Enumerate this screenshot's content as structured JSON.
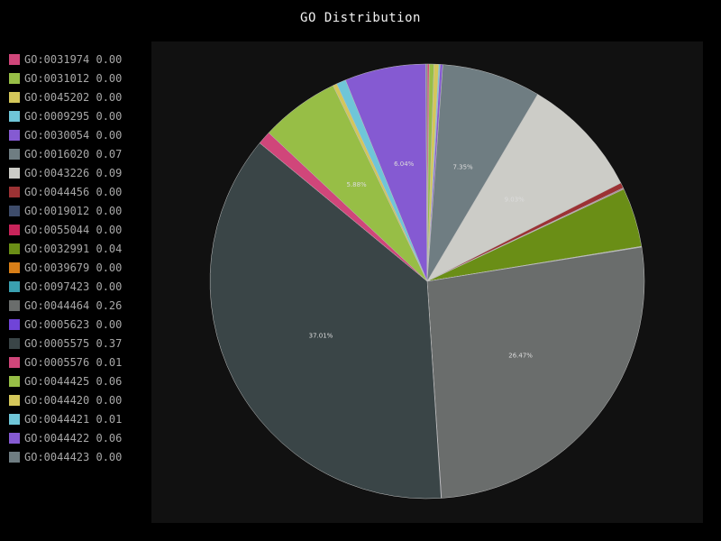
{
  "chart_data": {
    "type": "pie",
    "title": "GO Distribution",
    "slices": [
      {
        "label": "GO:0031974",
        "value_text": "0.00",
        "value": 0.0015,
        "color": "#d0467a",
        "pct_label": ""
      },
      {
        "label": "GO:0031012",
        "value_text": "0.00",
        "value": 0.0035,
        "color": "#97be46",
        "pct_label": ""
      },
      {
        "label": "GO:0045202",
        "value_text": "0.00",
        "value": 0.0035,
        "color": "#d4c75a",
        "pct_label": ""
      },
      {
        "label": "GO:0009295",
        "value_text": "0.00",
        "value": 0.001,
        "color": "#6fc6d8",
        "pct_label": ""
      },
      {
        "label": "GO:0030054",
        "value_text": "0.00",
        "value": 0.002,
        "color": "#855ad2",
        "pct_label": ""
      },
      {
        "label": "GO:0016020",
        "value_text": "0.07",
        "value": 0.0735,
        "color": "#6f7d82",
        "pct_label": "7.35%"
      },
      {
        "label": "GO:0043226",
        "value_text": "0.09",
        "value": 0.0903,
        "color": "#ccccc7",
        "pct_label": "9.03%"
      },
      {
        "label": "GO:0044456",
        "value_text": "0.00",
        "value": 0.004,
        "color": "#9c3234",
        "pct_label": ""
      },
      {
        "label": "GO:0019012",
        "value_text": "0.00",
        "value": 0.0005,
        "color": "#3e4c6a",
        "pct_label": ""
      },
      {
        "label": "GO:0055044",
        "value_text": "0.00",
        "value": 0.0005,
        "color": "#c8245a",
        "pct_label": ""
      },
      {
        "label": "GO:0032991",
        "value_text": "0.04",
        "value": 0.044,
        "color": "#6a8e16",
        "pct_label": ""
      },
      {
        "label": "GO:0039679",
        "value_text": "0.00",
        "value": 0.0003,
        "color": "#d87f18",
        "pct_label": ""
      },
      {
        "label": "GO:0097423",
        "value_text": "0.00",
        "value": 0.0003,
        "color": "#3aa0b0",
        "pct_label": ""
      },
      {
        "label": "GO:0044464",
        "value_text": "0.26",
        "value": 0.2647,
        "color": "#6a6d6c",
        "pct_label": "26.47%"
      },
      {
        "label": "GO:0005623",
        "value_text": "0.00",
        "value": 0.0003,
        "color": "#7044d8",
        "pct_label": ""
      },
      {
        "label": "GO:0005575",
        "value_text": "0.37",
        "value": 0.3701,
        "color": "#3a4547",
        "pct_label": "37.01%"
      },
      {
        "label": "GO:0005576",
        "value_text": "0.01",
        "value": 0.01,
        "color": "#d0467a",
        "pct_label": ""
      },
      {
        "label": "GO:0044425",
        "value_text": "0.06",
        "value": 0.0588,
        "color": "#97be46",
        "pct_label": "5.88%"
      },
      {
        "label": "GO:0044420",
        "value_text": "0.00",
        "value": 0.003,
        "color": "#d4c75a",
        "pct_label": ""
      },
      {
        "label": "GO:0044421",
        "value_text": "0.01",
        "value": 0.007,
        "color": "#6fc6d8",
        "pct_label": ""
      },
      {
        "label": "GO:0044422",
        "value_text": "0.06",
        "value": 0.0604,
        "color": "#855ad2",
        "pct_label": "6.04%"
      },
      {
        "label": "GO:0044423",
        "value_text": "0.00",
        "value": 0.001,
        "color": "#6f7d82",
        "pct_label": ""
      }
    ],
    "legend_position": "left",
    "start_angle_deg": 0,
    "direction": "clockwise",
    "background_color": "#000000",
    "plot_background_color": "#111111"
  }
}
